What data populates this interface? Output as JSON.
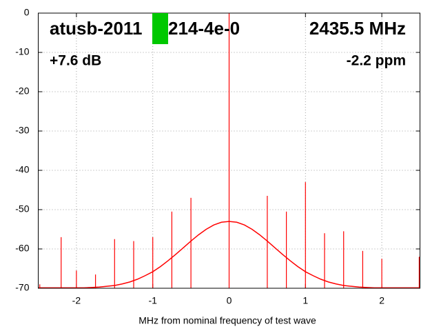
{
  "chart_data": {
    "type": "line",
    "annotations": {
      "device_prefix": "atusb-2011",
      "device_suffix": "214-4e-0",
      "frequency": "2435.5 MHz",
      "gain": "+7.6 dB",
      "offset": "-2.2 ppm"
    },
    "xlabel": "MHz from nominal frequency of test wave",
    "xlim": [
      -2.5,
      2.5
    ],
    "xticks": [
      -2,
      -1,
      0,
      1,
      2
    ],
    "ylim": [
      -70,
      0
    ],
    "yticks": [
      0,
      -10,
      -20,
      -30,
      -40,
      -50,
      -60,
      -70
    ],
    "grid": true,
    "color": "#ff0000",
    "x": [
      -2.5,
      -2.4,
      -2.3,
      -2.2,
      -2.1,
      -2.0,
      -1.9,
      -1.8,
      -1.7,
      -1.6,
      -1.5,
      -1.4,
      -1.3,
      -1.2,
      -1.1,
      -1.0,
      -0.9,
      -0.8,
      -0.7,
      -0.6,
      -0.5,
      -0.4,
      -0.3,
      -0.2,
      -0.1,
      0,
      0.1,
      0.2,
      0.3,
      0.4,
      0.5,
      0.6,
      0.7,
      0.8,
      0.9,
      1.0,
      1.1,
      1.2,
      1.3,
      1.4,
      1.5,
      1.6,
      1.7,
      1.8,
      1.9,
      2.0,
      2.1,
      2.2,
      2.3,
      2.4,
      2.5
    ],
    "values": [
      -69.9,
      -69.9,
      -69.9,
      -69.9,
      -69.9,
      -69.9,
      -69.9,
      -69.8,
      -69.7,
      -69.5,
      -69.3,
      -68.9,
      -68.4,
      -67.7,
      -66.8,
      -65.8,
      -64.5,
      -63,
      -61.4,
      -59.7,
      -58,
      -56.4,
      -55,
      -53.9,
      -53.2,
      -53,
      -53.2,
      -53.9,
      -55,
      -56.4,
      -58,
      -59.7,
      -61.4,
      -63,
      -64.5,
      -65.8,
      -66.8,
      -67.7,
      -68.4,
      -68.9,
      -69.3,
      -69.5,
      -69.7,
      -69.8,
      -69.9,
      -69.9,
      -69.9,
      -69.9,
      -69.9,
      -69.9,
      -69.9
    ],
    "spikes": {
      "x": [
        -2.48,
        -2.2,
        -2.0,
        -1.75,
        -1.5,
        -1.25,
        -1.0,
        -0.75,
        -0.5,
        0,
        0.5,
        0.75,
        1.0,
        1.25,
        1.5,
        1.75,
        2.0,
        2.49
      ],
      "values": [
        -69,
        -57,
        -65.5,
        -66.5,
        -57.5,
        -58,
        -57,
        -50.5,
        -47,
        0,
        -46.5,
        -50.5,
        -43,
        -56,
        -55.5,
        -60.5,
        -62.5,
        -62
      ]
    }
  }
}
